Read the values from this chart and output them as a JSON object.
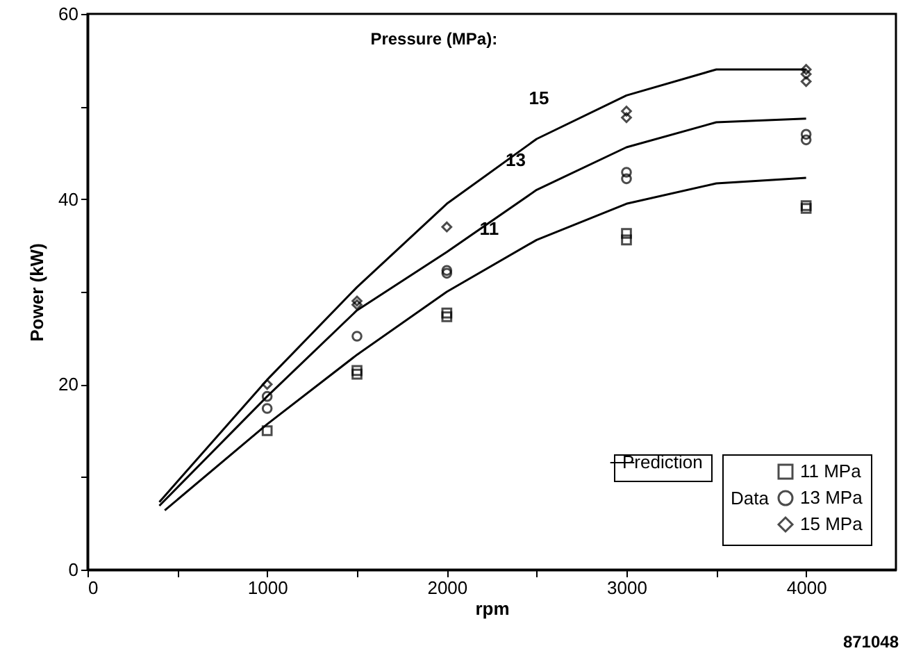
{
  "chart_data": {
    "type": "line",
    "xlabel": "rpm",
    "ylabel": "Power (kW)",
    "legend_title": "Data",
    "legend": "bottom right",
    "grid": false,
    "xlim": [
      0,
      4500
    ],
    "xticks": [
      0,
      {
        "value": 500,
        "label": null
      },
      1000,
      {
        "value": 1500,
        "label": null
      },
      2000,
      {
        "value": 2500,
        "label": null
      },
      3000,
      {
        "value": 3500,
        "label": null
      },
      4000
    ],
    "ylim": [
      0,
      60
    ],
    "yticks": [
      0,
      {
        "value": 10,
        "label": null
      },
      20,
      {
        "value": 30,
        "label": null
      },
      40,
      {
        "value": 50,
        "label": null
      },
      60
    ],
    "annotations": [
      "Pressure (MPa):",
      {
        "text": "15",
        "x": 2600,
        "y": 47.7
      },
      {
        "text": "13",
        "x": 2470,
        "y": 41
      },
      {
        "text": "11",
        "x": 2320,
        "y": 33.6
      },
      "871048"
    ],
    "series": [
      {
        "name": "Prediction",
        "color": "#000000",
        "line_style": "solid",
        "marker": "none",
        "x": [
          400,
          1000,
          1500,
          2000,
          2500,
          3000,
          3500,
          4000
        ],
        "values": [
          7.3,
          20.5,
          30.5,
          39.5,
          46.5,
          51.2,
          54,
          54
        ]
      },
      {
        "color": "#000000",
        "line_style": "solid",
        "marker": "none",
        "x": [
          400,
          1000,
          1500,
          2000,
          2500,
          3000,
          3500,
          4000
        ],
        "values": [
          6.9,
          18.7,
          28,
          34.3,
          41,
          45.6,
          48.3,
          48.7
        ]
      },
      {
        "color": "#000000",
        "line_style": "solid",
        "marker": "none",
        "x": [
          430,
          1000,
          1500,
          2000,
          2500,
          3000,
          3500,
          4000
        ],
        "values": [
          6.4,
          15.7,
          23.2,
          30,
          35.6,
          39.5,
          41.7,
          42.3
        ]
      },
      {
        "type": "scatter",
        "name": "11 MPa",
        "color": "#000000",
        "marker": "square",
        "x": [
          1000,
          1500,
          1500,
          2000,
          2000,
          3000,
          3000,
          4000,
          4000
        ],
        "values": [
          15,
          21.5,
          21.1,
          27.7,
          27.3,
          36.3,
          35.6,
          39.3,
          39
        ]
      },
      {
        "type": "scatter",
        "name": "13 MPa",
        "color": "#000000",
        "marker": "circle",
        "x": [
          1000,
          1000,
          1500,
          2000,
          2000,
          3000,
          3000,
          4000,
          4000
        ],
        "values": [
          17.4,
          18.7,
          25.2,
          32.3,
          32,
          42.9,
          42.2,
          47,
          46.4
        ]
      },
      {
        "type": "scatter",
        "name": "15 MPa",
        "color": "#000000",
        "marker": "diamond",
        "x": [
          1000,
          1500,
          1500,
          2000,
          3000,
          3000,
          4000,
          4000,
          4000
        ],
        "values": [
          20,
          29,
          28.6,
          37,
          49.5,
          48.8,
          54,
          53.5,
          52.7
        ]
      }
    ]
  }
}
